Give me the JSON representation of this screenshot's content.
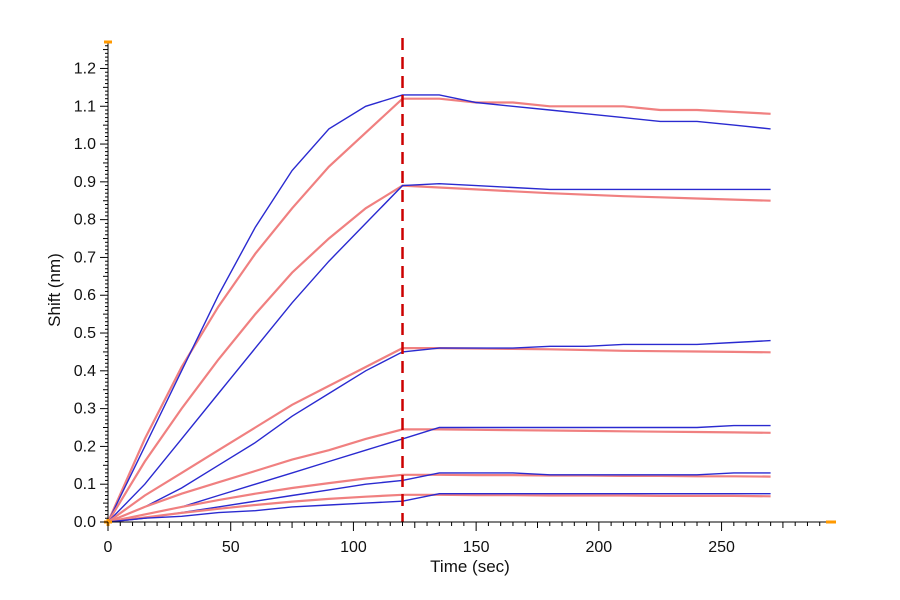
{
  "chart_data": {
    "type": "line",
    "title": "",
    "xlabel": "Time (sec)",
    "ylabel": "Shift (nm)",
    "xlim": [
      0,
      295
    ],
    "ylim": [
      0,
      1.27
    ],
    "x_ticks": [
      0,
      50,
      100,
      150,
      200,
      250
    ],
    "x_tick_labels": [
      "0",
      "50",
      "100",
      "150",
      "200",
      "250"
    ],
    "y_ticks": [
      0.0,
      0.1,
      0.2,
      0.3,
      0.4,
      0.5,
      0.6,
      0.7,
      0.8,
      0.9,
      1.0,
      1.1,
      1.2
    ],
    "y_tick_labels": [
      "0.0",
      "0.1",
      "0.2",
      "0.3",
      "0.4",
      "0.5",
      "0.6",
      "0.7",
      "0.8",
      "0.9",
      "1.0",
      "1.1",
      "1.2"
    ],
    "grid": false,
    "legend": "none",
    "marker_line_x": 120,
    "colors": {
      "measured": "#2a2ad0",
      "fit": "#f08080",
      "marker": "#cc0000",
      "axis": "#000000",
      "axis_accent": "#ff9900"
    },
    "series_groups": [
      {
        "measured": {
          "x": [
            0,
            15,
            30,
            45,
            60,
            75,
            90,
            105,
            120,
            135,
            150,
            165,
            180,
            195,
            210,
            225,
            240,
            255,
            270
          ],
          "y": [
            0.0,
            0.2,
            0.4,
            0.6,
            0.78,
            0.93,
            1.04,
            1.1,
            1.13,
            1.13,
            1.11,
            1.1,
            1.09,
            1.08,
            1.07,
            1.06,
            1.06,
            1.05,
            1.04
          ]
        },
        "fit": {
          "x": [
            0,
            15,
            30,
            45,
            60,
            75,
            90,
            105,
            120,
            135,
            150,
            165,
            180,
            195,
            210,
            225,
            240,
            255,
            270
          ],
          "y": [
            0.0,
            0.22,
            0.41,
            0.57,
            0.71,
            0.83,
            0.94,
            1.03,
            1.12,
            1.12,
            1.11,
            1.11,
            1.1,
            1.1,
            1.1,
            1.09,
            1.09,
            1.085,
            1.08
          ]
        }
      },
      {
        "measured": {
          "x": [
            0,
            15,
            30,
            45,
            60,
            75,
            90,
            105,
            120,
            135,
            150,
            165,
            180,
            195,
            210,
            225,
            240,
            255,
            270
          ],
          "y": [
            0.0,
            0.1,
            0.22,
            0.34,
            0.46,
            0.58,
            0.69,
            0.79,
            0.89,
            0.895,
            0.89,
            0.885,
            0.88,
            0.88,
            0.88,
            0.88,
            0.88,
            0.88,
            0.88
          ]
        },
        "fit": {
          "x": [
            0,
            15,
            30,
            45,
            60,
            75,
            90,
            105,
            120,
            135,
            150,
            165,
            180,
            195,
            210,
            225,
            240,
            255,
            270
          ],
          "y": [
            0.0,
            0.16,
            0.3,
            0.43,
            0.55,
            0.66,
            0.75,
            0.83,
            0.89,
            0.885,
            0.88,
            0.875,
            0.87,
            0.866,
            0.862,
            0.859,
            0.856,
            0.853,
            0.85
          ]
        }
      },
      {
        "measured": {
          "x": [
            0,
            15,
            30,
            45,
            60,
            75,
            90,
            105,
            120,
            135,
            150,
            165,
            180,
            195,
            210,
            225,
            240,
            255,
            270
          ],
          "y": [
            0.0,
            0.04,
            0.09,
            0.15,
            0.21,
            0.28,
            0.34,
            0.4,
            0.45,
            0.46,
            0.46,
            0.46,
            0.465,
            0.465,
            0.47,
            0.47,
            0.47,
            0.475,
            0.48
          ]
        },
        "fit": {
          "x": [
            0,
            15,
            30,
            45,
            60,
            75,
            90,
            105,
            120,
            135,
            150,
            165,
            180,
            195,
            210,
            225,
            240,
            255,
            270
          ],
          "y": [
            0.0,
            0.07,
            0.13,
            0.19,
            0.25,
            0.31,
            0.36,
            0.41,
            0.46,
            0.46,
            0.459,
            0.458,
            0.457,
            0.455,
            0.453,
            0.452,
            0.451,
            0.45,
            0.449
          ]
        }
      },
      {
        "measured": {
          "x": [
            0,
            15,
            30,
            45,
            60,
            75,
            90,
            105,
            120,
            135,
            150,
            165,
            180,
            195,
            210,
            225,
            240,
            255,
            270
          ],
          "y": [
            0.0,
            0.02,
            0.04,
            0.07,
            0.1,
            0.13,
            0.16,
            0.19,
            0.22,
            0.25,
            0.25,
            0.25,
            0.25,
            0.25,
            0.25,
            0.25,
            0.25,
            0.255,
            0.255
          ]
        },
        "fit": {
          "x": [
            0,
            15,
            30,
            45,
            60,
            75,
            90,
            105,
            120,
            135,
            150,
            165,
            180,
            195,
            210,
            225,
            240,
            255,
            270
          ],
          "y": [
            0.0,
            0.04,
            0.075,
            0.105,
            0.135,
            0.165,
            0.19,
            0.22,
            0.245,
            0.245,
            0.244,
            0.243,
            0.242,
            0.241,
            0.24,
            0.239,
            0.238,
            0.237,
            0.236
          ]
        }
      },
      {
        "measured": {
          "x": [
            0,
            15,
            30,
            45,
            60,
            75,
            90,
            105,
            120,
            135,
            150,
            165,
            180,
            195,
            210,
            225,
            240,
            255,
            270
          ],
          "y": [
            0.0,
            0.01,
            0.025,
            0.04,
            0.055,
            0.07,
            0.085,
            0.1,
            0.11,
            0.13,
            0.13,
            0.13,
            0.125,
            0.125,
            0.125,
            0.125,
            0.125,
            0.13,
            0.13
          ]
        },
        "fit": {
          "x": [
            0,
            15,
            30,
            45,
            60,
            75,
            90,
            105,
            120,
            135,
            150,
            165,
            180,
            195,
            210,
            225,
            240,
            255,
            270
          ],
          "y": [
            0.0,
            0.02,
            0.04,
            0.058,
            0.075,
            0.09,
            0.103,
            0.115,
            0.125,
            0.125,
            0.124,
            0.124,
            0.123,
            0.123,
            0.122,
            0.122,
            0.121,
            0.121,
            0.12
          ]
        }
      },
      {
        "measured": {
          "x": [
            0,
            15,
            30,
            45,
            60,
            75,
            90,
            105,
            120,
            135,
            150,
            165,
            180,
            195,
            210,
            225,
            240,
            255,
            270
          ],
          "y": [
            0.0,
            0.01,
            0.015,
            0.025,
            0.03,
            0.04,
            0.045,
            0.05,
            0.055,
            0.075,
            0.075,
            0.075,
            0.075,
            0.075,
            0.075,
            0.075,
            0.075,
            0.075,
            0.075
          ]
        },
        "fit": {
          "x": [
            0,
            15,
            30,
            45,
            60,
            75,
            90,
            105,
            120,
            135,
            150,
            165,
            180,
            195,
            210,
            225,
            240,
            255,
            270
          ],
          "y": [
            0.0,
            0.012,
            0.024,
            0.035,
            0.045,
            0.054,
            0.061,
            0.067,
            0.072,
            0.072,
            0.071,
            0.071,
            0.07,
            0.07,
            0.07,
            0.069,
            0.069,
            0.069,
            0.068
          ]
        }
      }
    ]
  }
}
